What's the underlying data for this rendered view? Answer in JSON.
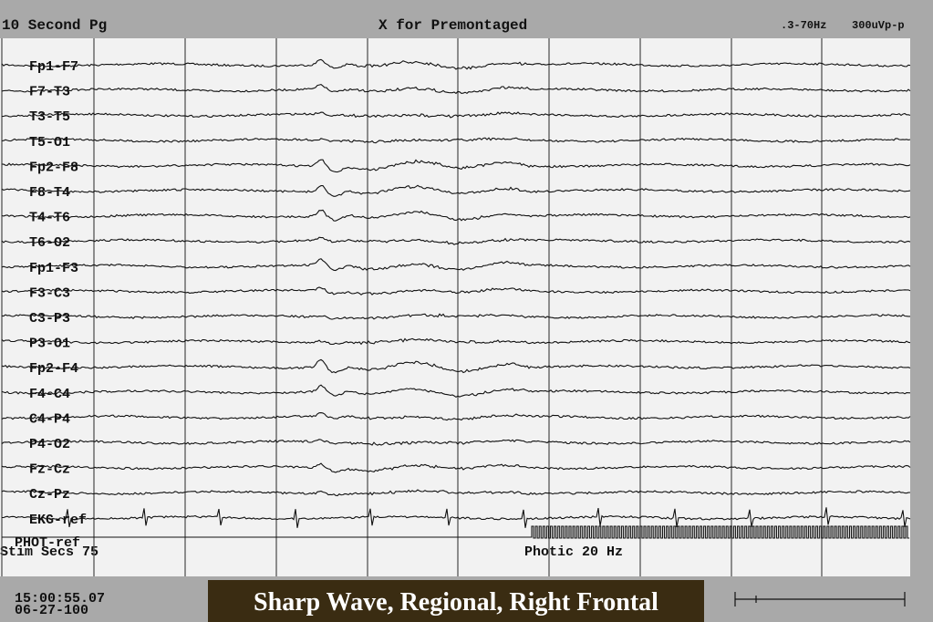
{
  "header": {
    "page": "10 Second Pg",
    "prompt": "X for Premontaged",
    "filter": ".3-70Hz",
    "sensitivity": "300uVp-p"
  },
  "channels": [
    "Fp1-F7",
    "F7-T3",
    "T3-T5",
    "T5-O1",
    "Fp2-F8",
    "F8-T4",
    "T4-T6",
    "T6-O2",
    "Fp1-F3",
    "F3-C3",
    "C3-P3",
    "P3-O1",
    "Fp2-F4",
    "F4-C4",
    "C4-P4",
    "P4-O2",
    "Fz-Cz",
    "Cz-Pz",
    "EKG-ref"
  ],
  "photic_channel": "PHOT-ref",
  "stim": {
    "seconds": "Stim Secs 75",
    "photic": "Photic 20 Hz"
  },
  "footer": {
    "time": "15:00:55.07",
    "date": "06-27-100",
    "caption": "Sharp Wave, Regional, Right Frontal"
  }
}
